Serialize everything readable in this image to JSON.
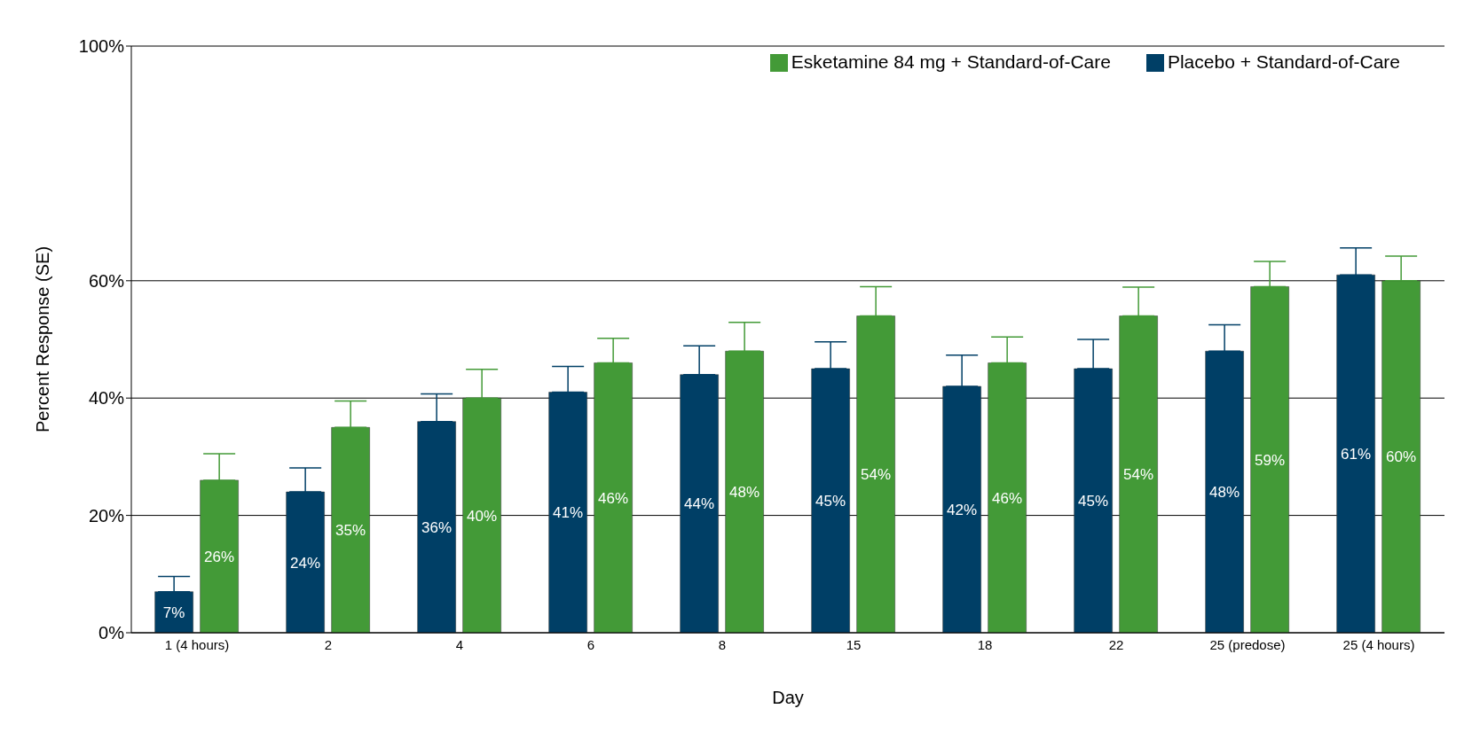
{
  "chart_data": {
    "type": "bar",
    "xlabel": "Day",
    "ylabel": "Percent Response (SE)",
    "categories": [
      "1 (4 hours)",
      "2",
      "4",
      "6",
      "8",
      "15",
      "18",
      "22",
      "25 (predose)",
      "25 (4 hours)"
    ],
    "series": [
      {
        "name": "Placebo + Standard-of-Care",
        "color": "#003f66",
        "values": [
          7,
          24,
          36,
          41,
          44,
          45,
          42,
          45,
          48,
          61
        ],
        "value_labels": [
          "7%",
          "24%",
          "36%",
          "41%",
          "44%",
          "45%",
          "42%",
          "45%",
          "48%",
          "61%"
        ],
        "errors": [
          [
            7,
            9.6
          ],
          [
            24,
            28.1
          ],
          [
            36,
            40.7
          ],
          [
            41,
            45.4
          ],
          [
            44,
            48.9
          ],
          [
            45,
            49.6
          ],
          [
            42,
            47.3
          ],
          [
            45,
            50
          ],
          [
            48,
            52.5
          ],
          [
            61,
            65.6
          ]
        ]
      },
      {
        "name": "Esketamine 84 mg + Standard-of-Care",
        "color": "#439a37",
        "values": [
          26,
          35,
          40,
          46,
          48,
          54,
          46,
          54,
          59,
          60
        ],
        "value_labels": [
          "26%",
          "35%",
          "40%",
          "46%",
          "48%",
          "54%",
          "46%",
          "54%",
          "59%",
          "60%"
        ],
        "errors": [
          [
            26,
            30.5
          ],
          [
            35,
            39.5
          ],
          [
            40,
            44.9
          ],
          [
            46,
            50.2
          ],
          [
            48,
            52.9
          ],
          [
            54,
            59
          ],
          [
            46,
            50.4
          ],
          [
            54,
            58.9
          ],
          [
            59,
            63.3
          ],
          [
            60,
            64.2
          ]
        ]
      }
    ],
    "ylim": [
      0,
      100
    ],
    "yticks": [
      {
        "value": 0,
        "label": "0%"
      },
      {
        "value": 20,
        "label": "20%"
      },
      {
        "value": 40,
        "label": "40%"
      },
      {
        "value": 60,
        "label": "60%"
      },
      {
        "value": 100,
        "label": "100%"
      }
    ],
    "grid": "y",
    "legend": "top right"
  }
}
